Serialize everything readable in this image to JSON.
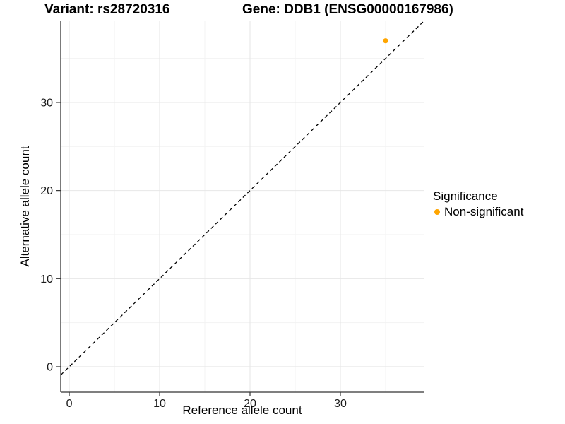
{
  "titles": {
    "variant": "Variant: rs28720316",
    "gene": "Gene: DDB1 (ENSG00000167986)"
  },
  "chart_data": {
    "type": "scatter",
    "title": "Variant: rs28720316  /  Gene: DDB1 (ENSG00000167986)",
    "xlabel": "Reference allele count",
    "ylabel": "Alternative allele count",
    "xlim": [
      -0.94,
      39.22
    ],
    "ylim": [
      -2.89,
      39.22
    ],
    "xticks": [
      0,
      10,
      20,
      30
    ],
    "yticks": [
      0,
      10,
      20,
      30
    ],
    "minor_xticks": [
      5,
      15,
      25,
      35
    ],
    "minor_yticks": [
      5,
      15,
      25,
      35
    ],
    "grid": true,
    "identity_line": {
      "style": "dashed",
      "slope": 1,
      "intercept": 0,
      "color": "#000000"
    },
    "series": [
      {
        "name": "Non-significant",
        "color": "#FFA500",
        "points": [
          {
            "x": 35,
            "y": 37
          }
        ]
      }
    ],
    "legend": {
      "title": "Significance",
      "position": "right",
      "items": [
        {
          "label": "Non-significant",
          "color": "#FFA500"
        }
      ]
    }
  },
  "colors": {
    "background": "#FFFFFF",
    "grid_major": "#E7E7E7",
    "grid_minor": "#F2F2F2",
    "axis": "#333333",
    "tick_text": "#1A1A1A",
    "point": "#FFA500"
  }
}
